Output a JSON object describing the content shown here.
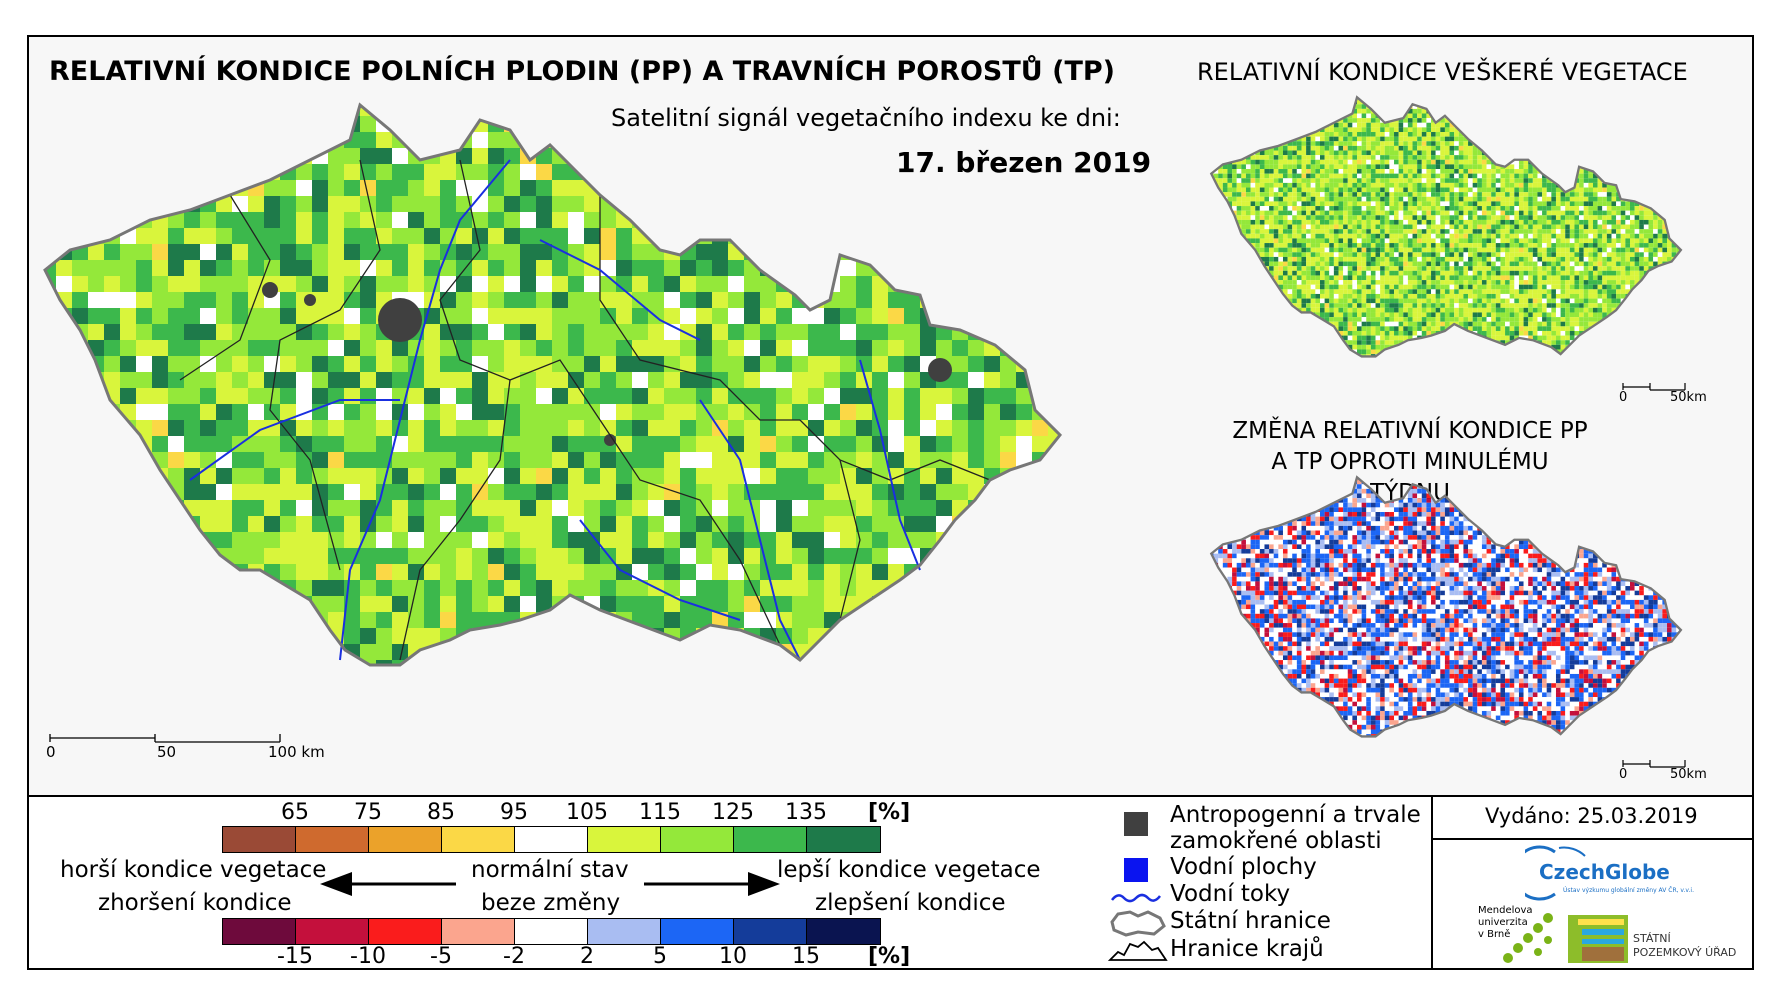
{
  "titles": {
    "main": "RELATIVNÍ KONDICE POLNÍCH PLODIN (PP) A TRAVNÍCH POROSTŮ (TP)",
    "vegetation": "RELATIVNÍ KONDICE VEŠKERÉ VEGETACE",
    "subtitle": "Satelitní signál vegetačního indexu ke dni:",
    "date": "17. březen 2019",
    "change": "ZMĚNA RELATIVNÍ KONDICE PP A TP OPROTI MINULÉMU TÝDNU"
  },
  "scales": {
    "main": [
      "0",
      "50",
      "100 km"
    ],
    "small_top": [
      "0",
      "50km"
    ],
    "small_bottom": [
      "0",
      "50km"
    ]
  },
  "condition_legend": {
    "ticks": [
      "65",
      "75",
      "85",
      "95",
      "105",
      "115",
      "125",
      "135"
    ],
    "unit": "[%]",
    "colors": [
      "#9a4a36",
      "#cf6a2e",
      "#eba22a",
      "#fbd846",
      "#ffffff",
      "#d9f53c",
      "#94e83a",
      "#3cb84c",
      "#1e7a4a"
    ]
  },
  "change_legend": {
    "ticks": [
      "-15",
      "-10",
      "-5",
      "-2",
      "2",
      "5",
      "10",
      "15"
    ],
    "unit": "[%]",
    "colors": [
      "#6e0a3c",
      "#c4103c",
      "#fa1c1c",
      "#fba58e",
      "#ffffff",
      "#a9bdf2",
      "#1c66f5",
      "#143c9a",
      "#0a1450"
    ]
  },
  "arrows": {
    "left_top": "horší kondice vegetace",
    "left_bottom": "zhoršení kondice",
    "center_top": "normální stav",
    "center_bottom": "beze změny",
    "right_top": "lepší kondice vegetace",
    "right_bottom": "zlepšení kondice"
  },
  "map_legend": {
    "anthropogenic": "Antropogenní a trvale zamokřené oblasti",
    "anthropogenic_line1": "Antropogenní a trvale",
    "anthropogenic_line2": "zamokřené oblasti",
    "water_bodies": "Vodní plochy",
    "rivers": "Vodní toky",
    "state_border": "Státní hranice",
    "regions": "Hranice krajů",
    "colors": {
      "anthropogenic": "#404040",
      "water": "#0a14f0",
      "river": "#1a2fe0"
    }
  },
  "issued": "Vydáno: 25.03.2019",
  "logos": {
    "czechglobe": "CzechGlobe",
    "czechglobe_sub": "Ústav výzkumu globální změny AV ČR, v.v.i.",
    "mendel_l1": "Mendelova",
    "mendel_l2": "univerzita",
    "mendel_l3": "v Brně",
    "spu_l1": "STÁTNÍ",
    "spu_l2": "POZEMKOVÝ ÚŘAD"
  }
}
